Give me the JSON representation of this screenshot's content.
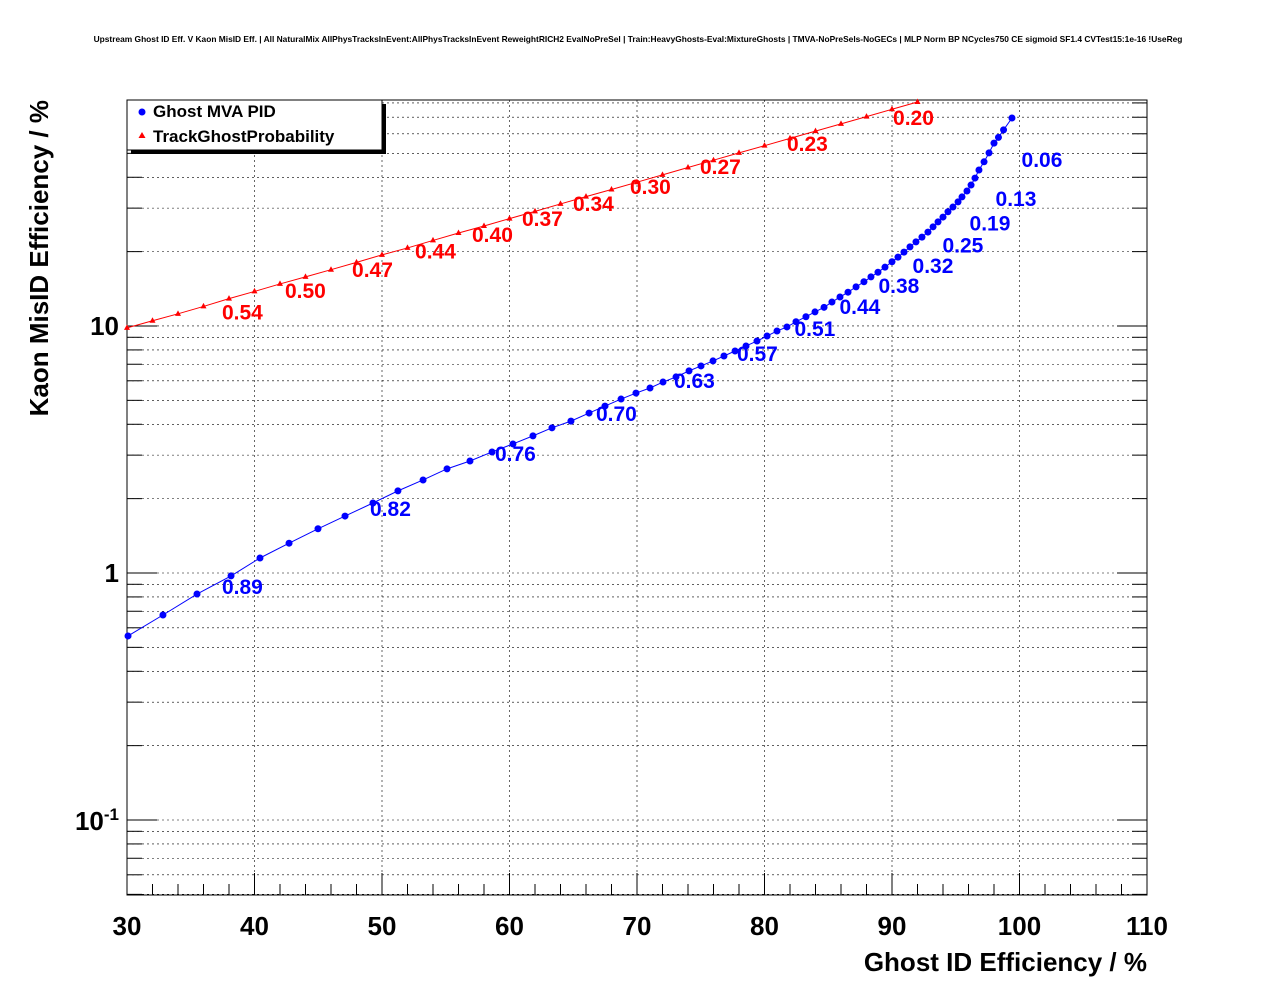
{
  "chart_data": {
    "type": "scatter",
    "title": "Upstream Ghost ID Eff. V Kaon MisID Eff. | All NaturalMix AllPhysTracksInEvent:AllPhysTracksInEvent ReweightRICH2 EvalNoPreSel | Train:HeavyGhosts-Eval:MixtureGhosts | TMVA-NoPreSels-NoGECs | MLP Norm BP NCycles750 CE sigmoid SF1.4 CVTest15:1e-16 !UseReg",
    "xlabel": "Ghost ID Efficiency / %",
    "ylabel": "Kaon MisID Efficiency / %",
    "xlim": [
      30,
      110
    ],
    "ylim": [
      0.0497,
      82.2
    ],
    "yscale": "log",
    "grid": true,
    "legend_position": "top-left",
    "x_ticks": [
      "30",
      "40",
      "50",
      "60",
      "70",
      "80",
      "90",
      "100",
      "110"
    ],
    "y_ticks": [
      {
        "value": 0.1,
        "base": "10",
        "exp": "-1"
      },
      {
        "value": 1,
        "label": "1"
      },
      {
        "value": 10,
        "label": "10"
      }
    ],
    "series": [
      {
        "name": "Ghost MVA PID",
        "color": "#0000ff",
        "marker": "circle",
        "x": [
          30.08,
          32.82,
          35.49,
          38.16,
          40.43,
          42.71,
          44.98,
          47.1,
          49.29,
          51.25,
          53.22,
          55.1,
          56.9,
          58.63,
          60.27,
          61.84,
          63.33,
          64.82,
          66.24,
          67.49,
          68.75,
          69.92,
          71.02,
          72.04,
          73.06,
          74.08,
          75.02,
          75.96,
          76.82,
          77.69,
          78.55,
          79.41,
          80.2,
          80.98,
          81.76,
          82.47,
          83.25,
          83.96,
          84.67,
          85.29,
          85.92,
          86.55,
          87.18,
          87.8,
          88.35,
          88.9,
          89.45,
          90.0,
          90.47,
          90.94,
          91.41,
          91.88,
          92.35,
          92.82,
          93.22,
          93.61,
          94.0,
          94.39,
          94.78,
          95.18,
          95.49,
          95.88,
          96.2,
          96.51,
          96.82,
          97.22,
          97.61,
          98.0,
          98.35,
          98.75,
          99.41
        ],
        "y": [
          0.556,
          0.676,
          0.822,
          0.973,
          1.15,
          1.32,
          1.51,
          1.7,
          1.92,
          2.15,
          2.38,
          2.64,
          2.84,
          3.09,
          3.33,
          3.59,
          3.87,
          4.12,
          4.44,
          4.74,
          5.06,
          5.35,
          5.61,
          5.93,
          6.22,
          6.58,
          6.89,
          7.22,
          7.56,
          7.92,
          8.3,
          8.69,
          9.11,
          9.54,
          9.91,
          10.4,
          10.9,
          11.4,
          11.9,
          12.5,
          13.1,
          13.7,
          14.4,
          15.1,
          15.8,
          16.5,
          17.3,
          18.2,
          19.0,
          19.9,
          20.9,
          21.9,
          22.9,
          24.0,
          25.2,
          26.4,
          27.6,
          29.0,
          30.3,
          31.8,
          33.3,
          35.2,
          37.2,
          39.7,
          42.8,
          46.2,
          50.2,
          55.0,
          58.0,
          62.2,
          69.5
        ],
        "labels": [
          {
            "text": "0.89",
            "x": 37.45,
            "y": 0.822
          },
          {
            "text": "0.82",
            "x": 49.06,
            "y": 1.7
          },
          {
            "text": "0.76",
            "x": 58.86,
            "y": 2.84
          },
          {
            "text": "0.70",
            "x": 66.78,
            "y": 4.12
          },
          {
            "text": "0.63",
            "x": 72.9,
            "y": 5.61
          },
          {
            "text": "0.57",
            "x": 77.84,
            "y": 7.22
          },
          {
            "text": "0.51",
            "x": 82.35,
            "y": 9.11
          },
          {
            "text": "0.44",
            "x": 85.88,
            "y": 11.2
          },
          {
            "text": "0.38",
            "x": 88.94,
            "y": 13.6
          },
          {
            "text": "0.32",
            "x": 91.61,
            "y": 16.4
          },
          {
            "text": "0.25",
            "x": 93.96,
            "y": 19.8
          },
          {
            "text": "0.19",
            "x": 96.08,
            "y": 24.3
          },
          {
            "text": "0.13",
            "x": 98.12,
            "y": 30.6
          },
          {
            "text": "0.06",
            "x": 100.16,
            "y": 44.1
          }
        ]
      },
      {
        "name": "TrackGhostProbability",
        "color": "#ff0000",
        "marker": "triangle",
        "x": [
          30,
          32,
          34,
          36,
          38,
          40,
          42,
          44,
          46,
          48,
          50,
          52,
          54,
          56,
          58,
          60,
          62,
          64,
          66,
          68,
          70,
          72,
          74,
          76,
          78,
          80,
          82,
          84,
          86,
          88,
          90,
          92
        ],
        "y": [
          9.82,
          10.5,
          11.2,
          12.0,
          12.9,
          13.8,
          14.8,
          15.8,
          16.9,
          18.1,
          19.4,
          20.7,
          22.2,
          23.8,
          25.4,
          27.2,
          29.1,
          31.2,
          33.4,
          35.7,
          38.2,
          40.9,
          43.8,
          46.9,
          50.2,
          53.7,
          57.5,
          61.5,
          65.8,
          70.4,
          75.4,
          80.7
        ],
        "labels": [
          {
            "text": "0.54",
            "x": 37.45,
            "y": 10.6
          },
          {
            "text": "0.50",
            "x": 42.39,
            "y": 13.0
          },
          {
            "text": "0.47",
            "x": 47.65,
            "y": 15.8
          },
          {
            "text": "0.44",
            "x": 52.59,
            "y": 18.8
          },
          {
            "text": "0.40",
            "x": 57.06,
            "y": 21.9
          },
          {
            "text": "0.37",
            "x": 60.98,
            "y": 25.4
          },
          {
            "text": "0.34",
            "x": 64.98,
            "y": 29.2
          },
          {
            "text": "0.30",
            "x": 69.45,
            "y": 34.2
          },
          {
            "text": "0.27",
            "x": 74.94,
            "y": 41.2
          },
          {
            "text": "0.23",
            "x": 81.76,
            "y": 51.2
          },
          {
            "text": "0.20",
            "x": 90.08,
            "y": 65.2
          }
        ]
      }
    ]
  }
}
